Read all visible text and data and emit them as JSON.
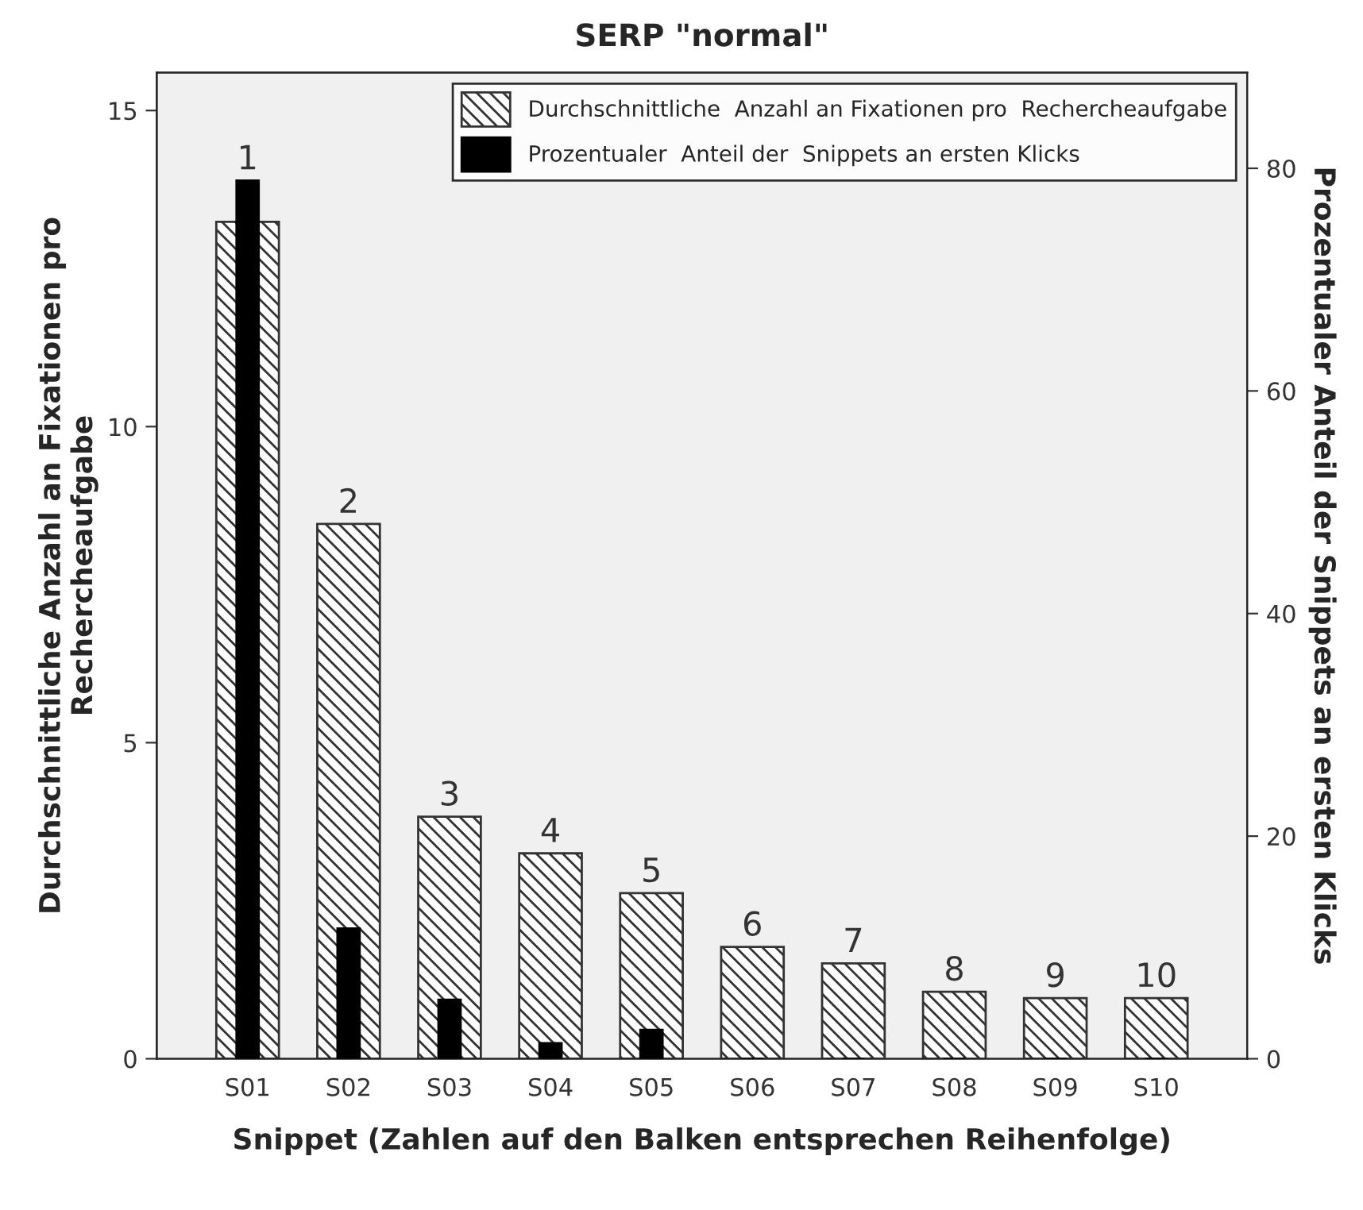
{
  "chart_data": {
    "type": "bar",
    "title": "SERP \"normal\"",
    "xlabel": "Snippet (Zahlen auf den Balken entsprechen Reihenfolge)",
    "ylabel": "Durchschnittliche Anzahl an Fixationen pro\nRechercheaufgabe",
    "y2label": "Prozentualer Anteil der Snippets an ersten Klicks",
    "categories": [
      "S01",
      "S02",
      "S03",
      "S04",
      "S05",
      "S06",
      "S07",
      "S08",
      "S09",
      "S10"
    ],
    "series": [
      {
        "name": "Durchschnittliche  Anzahl an Fixationen pro  Rechercheaufgabe",
        "color": "#333333",
        "values": [
          13.24,
          8.46,
          3.83,
          3.25,
          2.62,
          1.77,
          1.51,
          1.06,
          0.96,
          0.96
        ]
      },
      {
        "name": "Prozentualer  Anteil der  Snippets an ersten Klicks",
        "color": "#000000",
        "axis": "y2",
        "values": [
          78.9,
          11.7,
          5.3,
          1.4,
          2.6,
          0,
          0,
          0,
          0,
          0
        ]
      }
    ],
    "annotations": [
      {
        "text": "1",
        "x": "S01",
        "y": 13.24
      },
      {
        "text": "2",
        "x": "S02",
        "y": 8.46
      },
      {
        "text": "3",
        "x": "S03",
        "y": 3.83
      },
      {
        "text": "4",
        "x": "S04",
        "y": 3.25
      },
      {
        "text": "5",
        "x": "S05",
        "y": 2.62
      },
      {
        "text": "6",
        "x": "S06",
        "y": 1.77
      },
      {
        "text": "7",
        "x": "S07",
        "y": 1.51
      },
      {
        "text": "8",
        "x": "S08",
        "y": 1.06
      },
      {
        "text": "9",
        "x": "S09",
        "y": 0.96
      },
      {
        "text": "10",
        "x": "S10",
        "y": 0.96
      }
    ],
    "ylim": [
      0,
      15.6
    ],
    "yticks": [
      0,
      5,
      10,
      15
    ],
    "y2lim": [
      0,
      88.6
    ],
    "y2ticks": [
      0,
      20,
      40,
      60,
      80
    ],
    "grid": false,
    "legend": "top right"
  }
}
